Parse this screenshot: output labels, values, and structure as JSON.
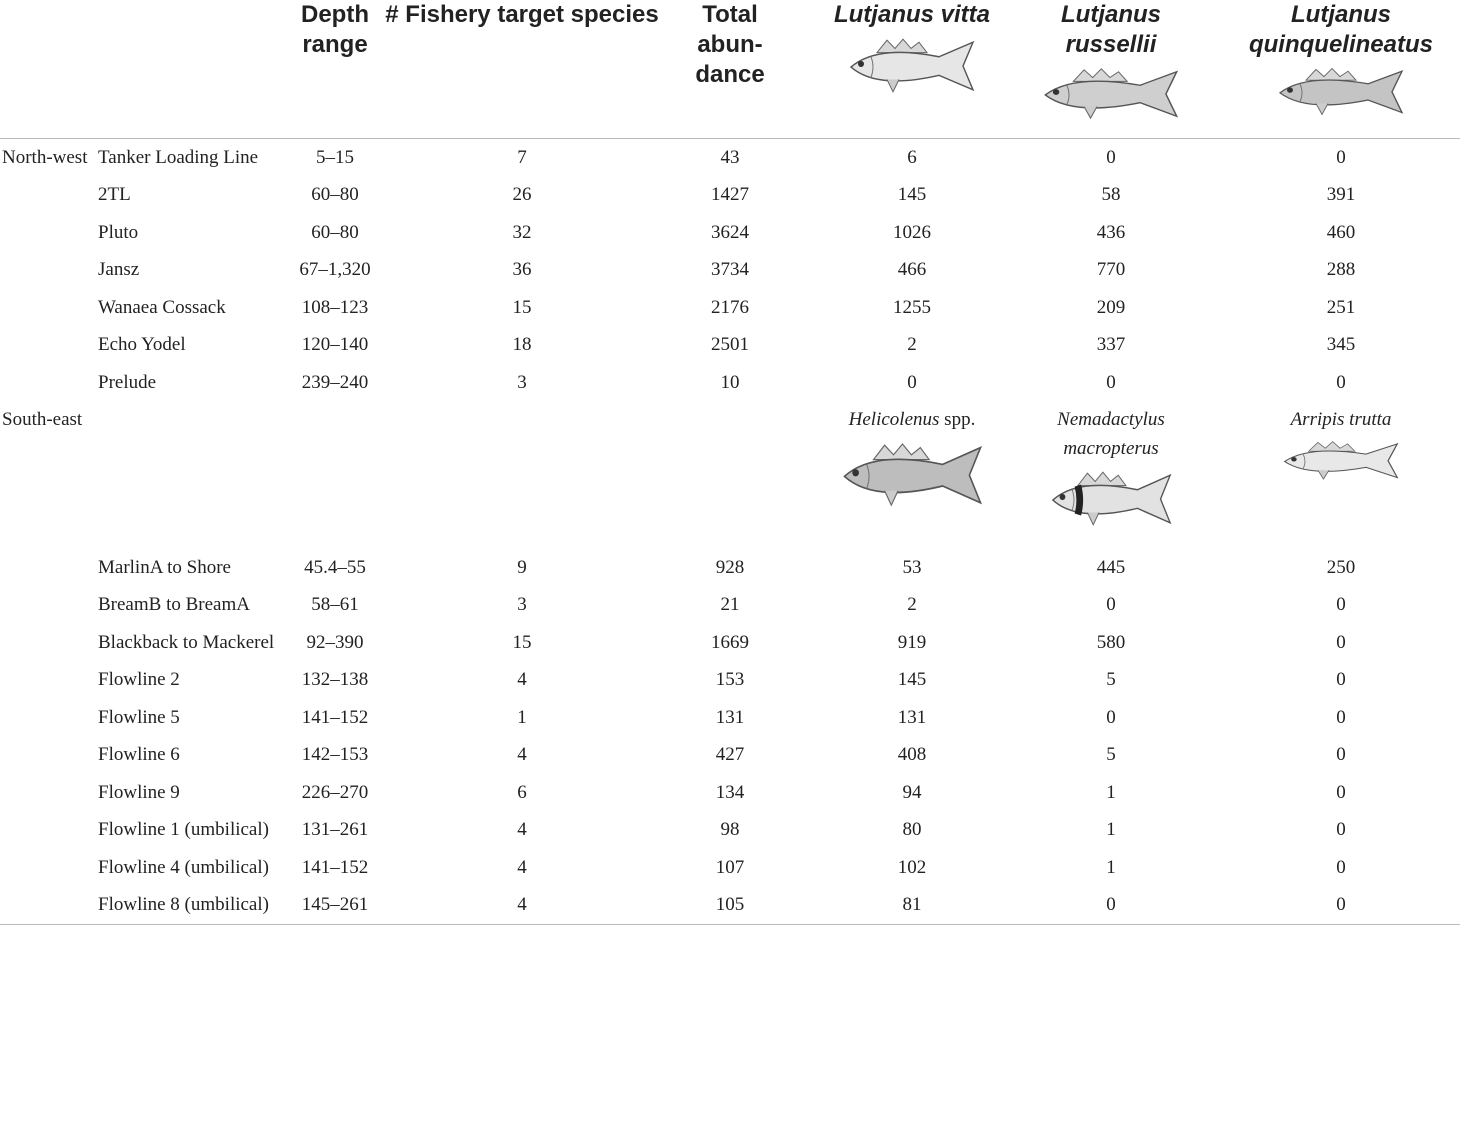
{
  "table": {
    "columns": [
      "Depth range",
      "# Fishery target species",
      "Total abun-dance",
      "Lutjanus vitta",
      "Lutjanus russellii",
      "Lutjanus quinquelineatus"
    ],
    "groups": [
      {
        "region": "North-west",
        "rows": [
          [
            "Tanker Loading Line",
            "5–15",
            7,
            43,
            6,
            0,
            0
          ],
          [
            "2TL",
            "60–80",
            26,
            1427,
            145,
            58,
            391
          ],
          [
            "Pluto",
            "60–80",
            32,
            3624,
            1026,
            436,
            460
          ],
          [
            "Jansz",
            "67–1,320",
            36,
            3734,
            466,
            770,
            288
          ],
          [
            "Wanaea Cossack",
            "108–123",
            15,
            2176,
            1255,
            209,
            251
          ],
          [
            "Echo Yodel",
            "120–140",
            18,
            2501,
            2,
            337,
            345
          ],
          [
            "Prelude",
            "239–240",
            3,
            10,
            0,
            0,
            0
          ]
        ]
      },
      {
        "region": "South-east",
        "species": [
          {
            "name": "Helicolenus",
            "qualifier": "spp."
          },
          {
            "name": "Nemadactylus macropterus"
          },
          {
            "name": "Arripis trutta"
          }
        ],
        "rows": [
          [
            "MarlinA to Shore",
            "45.4–55",
            9,
            928,
            53,
            445,
            250
          ],
          [
            "BreamB to BreamA",
            "58–61",
            3,
            21,
            2,
            0,
            0
          ],
          [
            "Blackback to Mackerel",
            "92–390",
            15,
            1669,
            919,
            580,
            0
          ],
          [
            "Flowline 2",
            "132–138",
            4,
            153,
            145,
            5,
            0
          ],
          [
            "Flowline 5",
            "141–152",
            1,
            131,
            131,
            0,
            0
          ],
          [
            "Flowline 6",
            "142–153",
            4,
            427,
            408,
            5,
            0
          ],
          [
            "Flowline 9",
            "226–270",
            6,
            134,
            94,
            1,
            0
          ],
          [
            "Flowline 1 (umbilical)",
            "131–261",
            4,
            98,
            80,
            1,
            0
          ],
          [
            "Flowline 4 (umbilical)",
            "141–152",
            4,
            107,
            102,
            1,
            0
          ],
          [
            "Flowline 8 (umbilical)",
            "145–261",
            4,
            105,
            81,
            0,
            0
          ]
        ]
      }
    ]
  }
}
